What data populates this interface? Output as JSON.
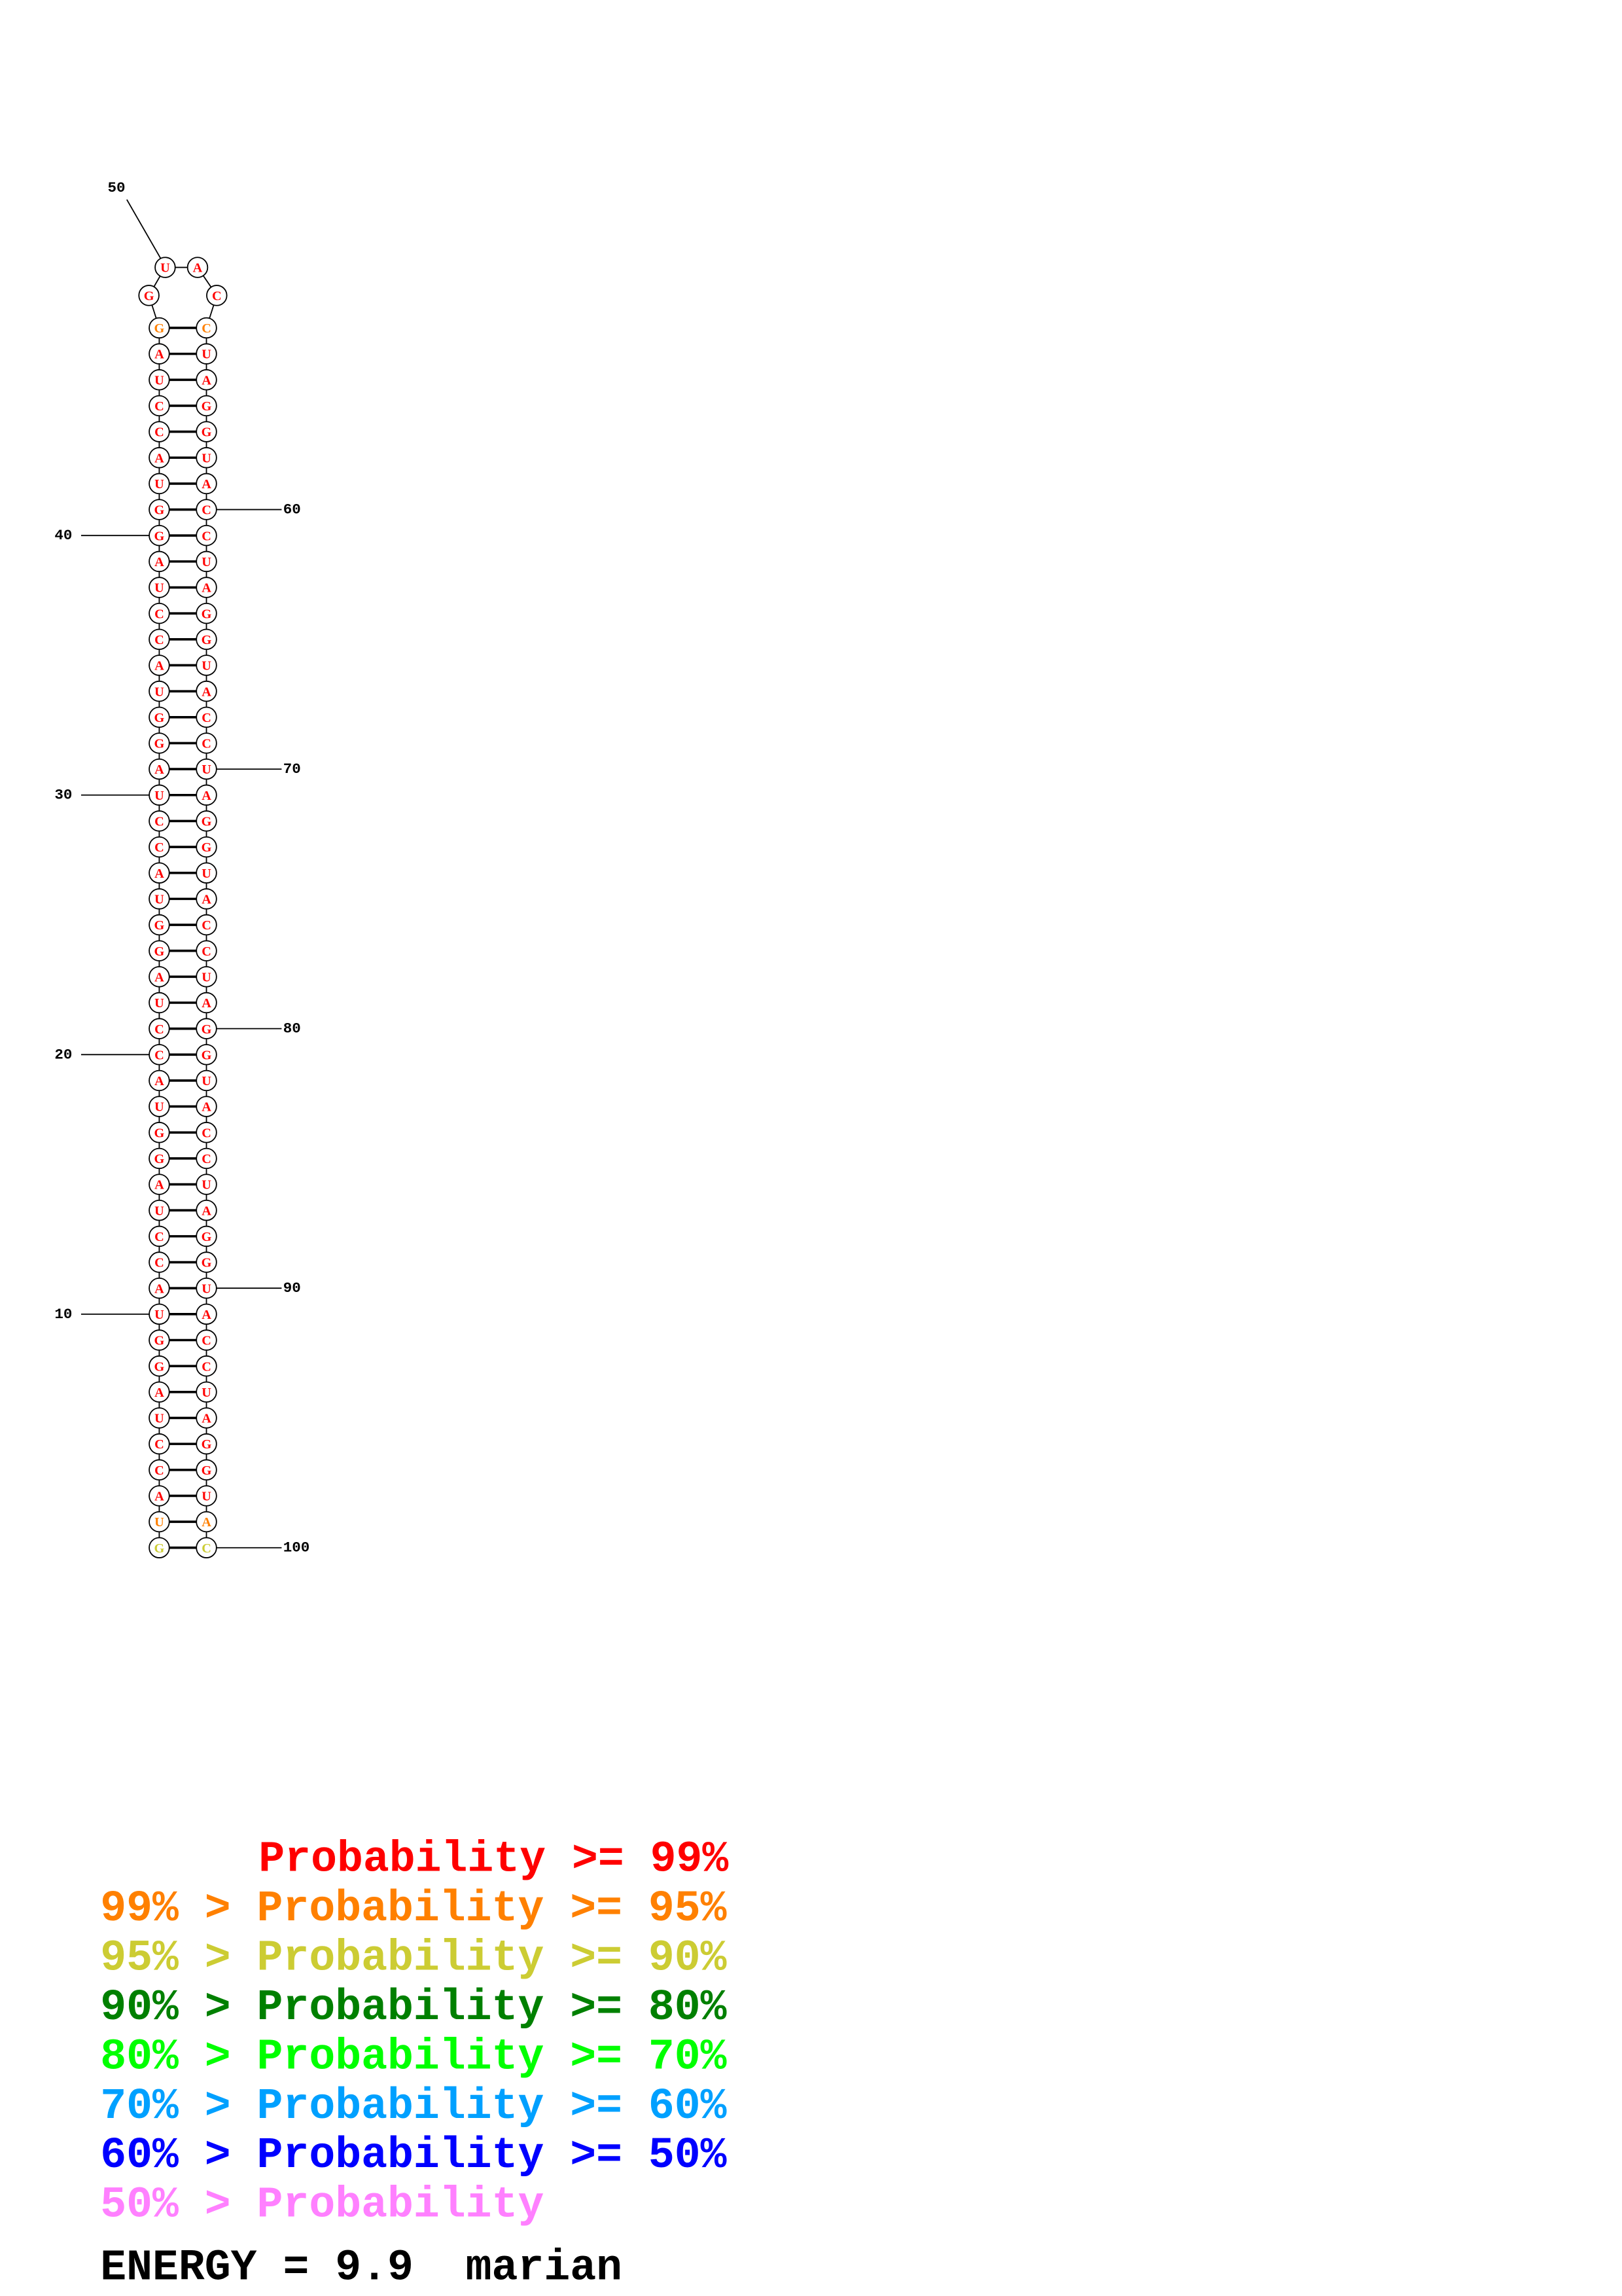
{
  "bases": [
    "G",
    "U",
    "A",
    "C",
    "C",
    "U",
    "A",
    "G",
    "G",
    "U",
    "A",
    "C",
    "C",
    "U",
    "A",
    "G",
    "G",
    "U",
    "A",
    "C",
    "C",
    "U",
    "A",
    "G",
    "G",
    "U",
    "A",
    "C",
    "C",
    "U",
    "A",
    "G",
    "G",
    "U",
    "A",
    "C",
    "C",
    "U",
    "A",
    "G",
    "G",
    "U",
    "A",
    "C",
    "C",
    "U",
    "A",
    "G",
    "G",
    "U",
    "A",
    "C",
    "C",
    "U",
    "A",
    "G",
    "G",
    "U",
    "A",
    "C",
    "C",
    "U",
    "A",
    "G",
    "G",
    "U",
    "A",
    "C",
    "C",
    "U",
    "A",
    "G",
    "G",
    "U",
    "A",
    "C",
    "C",
    "U",
    "A",
    "G",
    "G",
    "U",
    "A",
    "C",
    "C",
    "U",
    "A",
    "G",
    "G",
    "U",
    "A",
    "C",
    "C",
    "U",
    "A",
    "G",
    "G",
    "U",
    "A",
    "C"
  ],
  "colors": [
    "#cccc33",
    "#ff8000",
    "#ff0000",
    "#ff0000",
    "#ff0000",
    "#ff0000",
    "#ff0000",
    "#ff0000",
    "#ff0000",
    "#ff0000",
    "#ff0000",
    "#ff0000",
    "#ff0000",
    "#ff0000",
    "#ff0000",
    "#ff0000",
    "#ff0000",
    "#ff0000",
    "#ff0000",
    "#ff0000",
    "#ff0000",
    "#ff0000",
    "#ff0000",
    "#ff0000",
    "#ff0000",
    "#ff0000",
    "#ff0000",
    "#ff0000",
    "#ff0000",
    "#ff0000",
    "#ff0000",
    "#ff0000",
    "#ff0000",
    "#ff0000",
    "#ff0000",
    "#ff0000",
    "#ff0000",
    "#ff0000",
    "#ff0000",
    "#ff0000",
    "#ff0000",
    "#ff0000",
    "#ff0000",
    "#ff0000",
    "#ff0000",
    "#ff0000",
    "#ff0000",
    "#ff8000",
    "#ff0000",
    "#ff0000",
    "#ff0000",
    "#ff0000",
    "#ff8000",
    "#ff0000",
    "#ff0000",
    "#ff0000",
    "#ff0000",
    "#ff0000",
    "#ff0000",
    "#ff0000",
    "#ff0000",
    "#ff0000",
    "#ff0000",
    "#ff0000",
    "#ff0000",
    "#ff0000",
    "#ff0000",
    "#ff0000",
    "#ff0000",
    "#ff0000",
    "#ff0000",
    "#ff0000",
    "#ff0000",
    "#ff0000",
    "#ff0000",
    "#ff0000",
    "#ff0000",
    "#ff0000",
    "#ff0000",
    "#ff0000",
    "#ff0000",
    "#ff0000",
    "#ff0000",
    "#ff0000",
    "#ff0000",
    "#ff0000",
    "#ff0000",
    "#ff0000",
    "#ff0000",
    "#ff0000",
    "#ff0000",
    "#ff0000",
    "#ff0000",
    "#ff0000",
    "#ff0000",
    "#ff0000",
    "#ff0000",
    "#ff0000",
    "#ff8000",
    "#cccc33"
  ],
  "position_labels": [
    "10",
    "20",
    "30",
    "40",
    "50",
    "60",
    "70",
    "80",
    "90",
    "100"
  ],
  "legend": {
    "items": [
      {
        "text": "Probability >= 99%",
        "color": "#ff0000"
      },
      {
        "text": "99% > Probability >= 95%",
        "color": "#ff8000"
      },
      {
        "text": "95% > Probability >= 90%",
        "color": "#cccc33"
      },
      {
        "text": "90% > Probability >= 80%",
        "color": "#008000"
      },
      {
        "text": "80% > Probability >= 70%",
        "color": "#00ff00"
      },
      {
        "text": "70% > Probability >= 60%",
        "color": "#00a0ff"
      },
      {
        "text": "60% > Probability >= 50%",
        "color": "#0000ff"
      },
      {
        "text": "50% > Probability",
        "color": "#ff80ff"
      }
    ]
  },
  "energy": "ENERGY = 9.9  marian"
}
